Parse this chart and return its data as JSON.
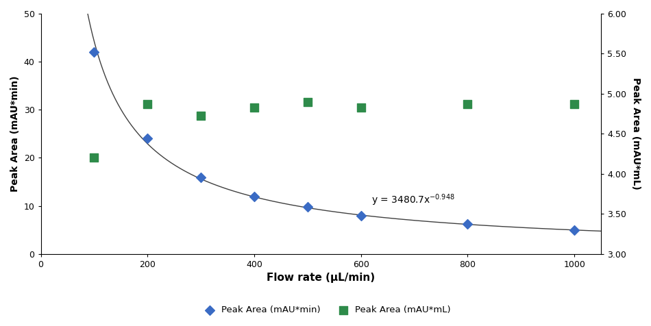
{
  "flow_rate": [
    100,
    200,
    300,
    400,
    500,
    600,
    800,
    1000
  ],
  "peak_area_min": [
    42,
    24,
    16,
    12,
    9.8,
    8.0,
    6.2,
    5.0
  ],
  "peak_area_mL": [
    4.2,
    4.87,
    4.73,
    4.83,
    4.9,
    4.83,
    4.87,
    4.87
  ],
  "fit_a": 3480.7,
  "fit_b": -0.948,
  "xlim": [
    0,
    1050
  ],
  "ylim_left": [
    0,
    50
  ],
  "ylim_right": [
    3.0,
    6.0
  ],
  "xlabel": "Flow rate (μL/min)",
  "ylabel_left": "Peak Area (mAU*min)",
  "ylabel_right": "Peak Area (mAU*mL)",
  "equation_x": 620,
  "equation_y": 10.5,
  "legend_labels": [
    "Peak Area (mAU*min)",
    "Peak Area (mAU*mL)"
  ],
  "blue_color": "#3A6BC4",
  "green_color": "#2E8B4A",
  "curve_color": "#404040",
  "xticks": [
    0,
    200,
    400,
    600,
    800,
    1000
  ],
  "yticks_left": [
    0,
    10,
    20,
    30,
    40,
    50
  ],
  "yticks_right": [
    3.0,
    3.5,
    4.0,
    4.5,
    5.0,
    5.5,
    6.0
  ]
}
